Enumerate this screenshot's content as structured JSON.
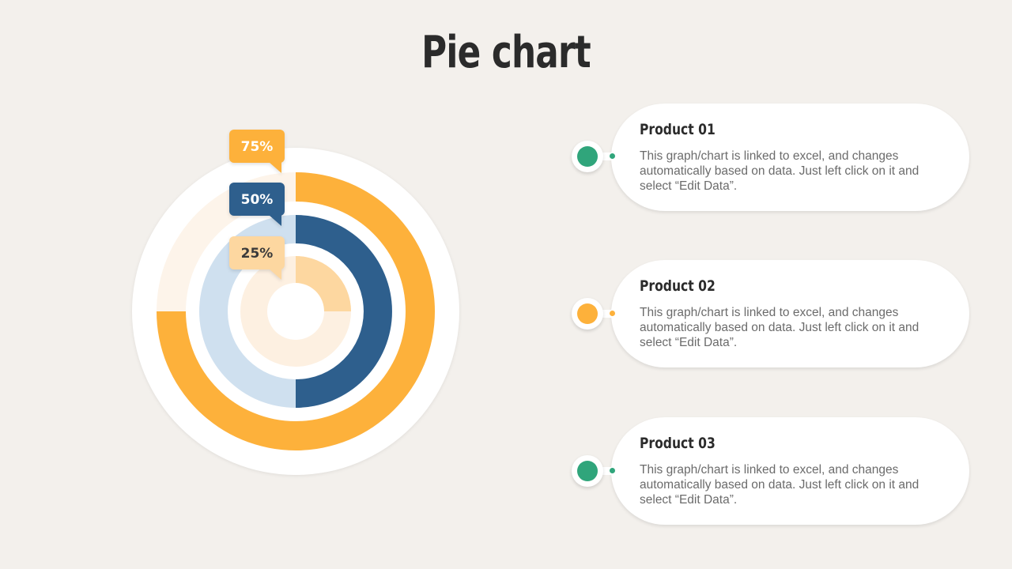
{
  "title": "Pie chart",
  "colors": {
    "background": "#f3f0ec",
    "orange": "#fdb13b",
    "orange_light": "#fdf4ea",
    "navy": "#2e5f8d",
    "blue_light": "#cfe0ef",
    "peach": "#fdd7a0",
    "peach_light": "#fdf0e1",
    "teal": "#30a57b",
    "white": "#ffffff"
  },
  "chart_data": {
    "type": "pie",
    "rings": [
      {
        "label": "75%",
        "value": 75,
        "fill": "#fdb13b",
        "track": "#fdf4ea",
        "label_bg": "#fdb13b",
        "label_color": "#ffffff"
      },
      {
        "label": "50%",
        "value": 50,
        "fill": "#2e5f8d",
        "track": "#cfe0ef",
        "label_bg": "#2e5f8d",
        "label_color": "#ffffff"
      },
      {
        "label": "25%",
        "value": 25,
        "fill": "#fdd7a0",
        "track": "#fdf0e1",
        "label_bg": "#fdd7a0",
        "label_color": "#3a3a3a"
      }
    ]
  },
  "products": [
    {
      "title": "Product 01",
      "description": "This graph/chart is linked to excel, and changes automatically based on data. Just left click on it and select “Edit Data”.",
      "color": "#30a57b"
    },
    {
      "title": "Product 02",
      "description": "This graph/chart is linked to excel, and changes automatically based on data. Just left click on it and select “Edit Data”.",
      "color": "#fdb13b"
    },
    {
      "title": "Product 03",
      "description": "This graph/chart is linked to excel, and changes automatically based on data. Just left click on it and select “Edit Data”.",
      "color": "#30a57b"
    }
  ]
}
